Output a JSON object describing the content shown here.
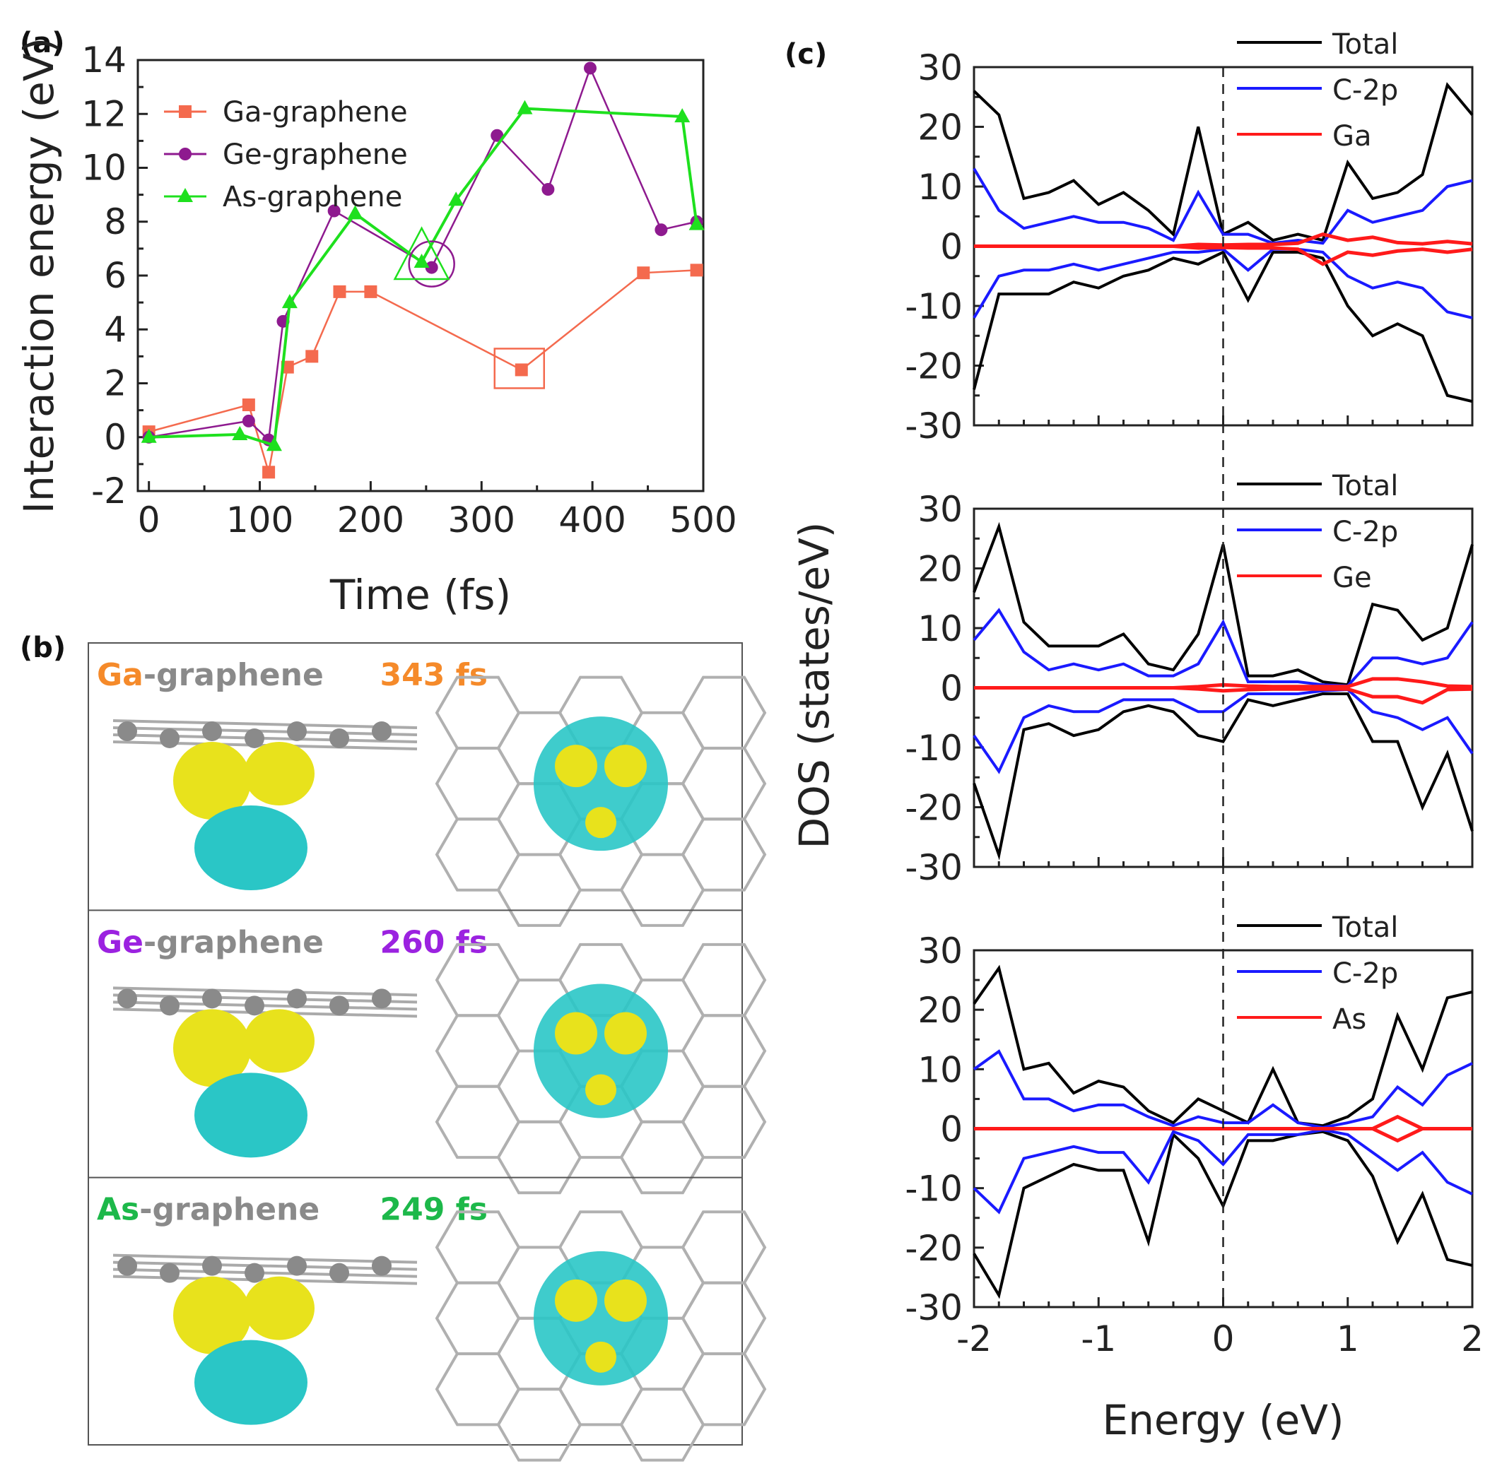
{
  "figure": {
    "panel_a_label": "(a)",
    "panel_b_label": "(b)",
    "panel_c_label": "(c)",
    "colors": {
      "ga": "#f46a4e",
      "ge": "#8e1a8f",
      "as": "#1ee01e",
      "total": "#000000",
      "c2p": "#1a1aff",
      "element": "#ff1a1a",
      "iso_yellow": "#e8e21c",
      "iso_cyan": "#2ac6c6",
      "atom": "#8a8a8a"
    }
  },
  "chart_data": [
    {
      "id": "panel-a",
      "type": "line",
      "title": "",
      "xlabel": "Time (fs)",
      "ylabel": "Interaction energy (eV)",
      "xlim": [
        -10,
        500
      ],
      "ylim": [
        -2,
        14
      ],
      "xticks": [
        0,
        100,
        200,
        300,
        400,
        500
      ],
      "yticks": [
        -2,
        0,
        2,
        4,
        6,
        8,
        10,
        12,
        14
      ],
      "legend": "top-left",
      "series": [
        {
          "name": "Ga-graphene",
          "marker": "square",
          "color": "#f46a4e",
          "x": [
            0,
            90,
            108,
            125,
            147,
            172,
            200,
            336,
            446,
            494
          ],
          "y": [
            0.2,
            1.2,
            -1.3,
            2.6,
            3.0,
            5.4,
            5.4,
            2.5,
            6.1,
            6.2
          ]
        },
        {
          "name": "Ge-graphene",
          "marker": "circle",
          "color": "#8e1a8f",
          "x": [
            0,
            90,
            108,
            121,
            167,
            255,
            314,
            360,
            398,
            462,
            494
          ],
          "y": [
            0.0,
            0.6,
            -0.1,
            4.3,
            8.4,
            6.3,
            11.2,
            9.2,
            13.7,
            7.7,
            8.0
          ]
        },
        {
          "name": "As-graphene",
          "marker": "triangle",
          "color": "#1ee01e",
          "x": [
            0,
            82,
            113,
            127,
            186,
            246,
            277,
            339,
            481,
            494
          ],
          "y": [
            0.0,
            0.1,
            -0.3,
            5.0,
            8.3,
            6.5,
            8.8,
            12.2,
            11.9,
            7.9
          ]
        }
      ],
      "annotations": [
        {
          "shape": "square",
          "series": "Ga-graphene",
          "x": 336,
          "y": 2.5
        },
        {
          "shape": "circle",
          "series": "Ge-graphene",
          "x": 255,
          "y": 6.3
        },
        {
          "shape": "triangle",
          "series": "As-graphene",
          "x": 246,
          "y": 6.5
        }
      ]
    },
    {
      "id": "panel-c",
      "type": "line",
      "title": "",
      "xlabel": "Energy (eV)",
      "ylabel": "DOS (states/eV)",
      "xlim": [
        -2,
        2
      ],
      "ylim": [
        -30,
        30
      ],
      "xticks": [
        -2,
        -1,
        0,
        1,
        2
      ],
      "yticks": [
        -30,
        -20,
        -10,
        0,
        10,
        20,
        30
      ],
      "fermi_line_x": 0,
      "subplots": [
        {
          "element": "Ga",
          "legend": [
            "Total",
            "C-2p",
            "Ga"
          ],
          "x": [
            -2,
            -1.8,
            -1.6,
            -1.4,
            -1.2,
            -1.0,
            -0.8,
            -0.6,
            -0.4,
            -0.2,
            0,
            0.2,
            0.4,
            0.6,
            0.8,
            1.0,
            1.2,
            1.4,
            1.6,
            1.8,
            2.0
          ],
          "total_up": [
            26,
            22,
            8,
            9,
            11,
            7,
            9,
            6,
            2,
            20,
            2,
            4,
            1,
            2,
            1,
            14,
            8,
            9,
            12,
            27,
            22
          ],
          "total_down": [
            -24,
            -8,
            -8,
            -8,
            -6,
            -7,
            -5,
            -4,
            -2,
            -3,
            -1,
            -9,
            -1,
            -1,
            -2,
            -10,
            -15,
            -13,
            -15,
            -25,
            -26
          ],
          "c2p_up": [
            13,
            6,
            3,
            4,
            5,
            4,
            4,
            3,
            1,
            9,
            2,
            2,
            0.5,
            1,
            0.5,
            6,
            4,
            5,
            6,
            10,
            11
          ],
          "c2p_down": [
            -12,
            -5,
            -4,
            -4,
            -3,
            -4,
            -3,
            -2,
            -1,
            -1,
            -0.5,
            -4,
            -0.5,
            -0.5,
            -1,
            -5,
            -7,
            -6,
            -7,
            -11,
            -12
          ],
          "elem_up": [
            0,
            0,
            0,
            0,
            0,
            0,
            0,
            0,
            0,
            0.3,
            0.2,
            0.3,
            0.3,
            0.5,
            2,
            1,
            1.5,
            0.6,
            0.4,
            0.8,
            0.4
          ],
          "elem_down": [
            0,
            0,
            0,
            0,
            0,
            0,
            0,
            0,
            0,
            -0.3,
            -0.2,
            -0.3,
            -0.3,
            -0.5,
            -3,
            -1,
            -1.5,
            -0.8,
            -0.5,
            -1,
            -0.5
          ]
        },
        {
          "element": "Ge",
          "legend": [
            "Total",
            "C-2p",
            "Ge"
          ],
          "x": [
            -2,
            -1.8,
            -1.6,
            -1.4,
            -1.2,
            -1.0,
            -0.8,
            -0.6,
            -0.4,
            -0.2,
            0,
            0.2,
            0.4,
            0.6,
            0.8,
            1.0,
            1.2,
            1.4,
            1.6,
            1.8,
            2.0
          ],
          "total_up": [
            16,
            27,
            11,
            7,
            7,
            7,
            9,
            4,
            3,
            9,
            24,
            2,
            2,
            3,
            1,
            0.5,
            14,
            13,
            8,
            10,
            24
          ],
          "total_down": [
            -16,
            -28,
            -7,
            -6,
            -8,
            -7,
            -4,
            -3,
            -4,
            -8,
            -9,
            -2,
            -3,
            -2,
            -1,
            -1,
            -9,
            -9,
            -20,
            -11,
            -24
          ],
          "c2p_up": [
            8,
            13,
            6,
            3,
            4,
            3,
            4,
            2,
            2,
            4,
            11,
            1,
            1,
            1,
            0.5,
            0.3,
            5,
            5,
            4,
            5,
            11
          ],
          "c2p_down": [
            -8,
            -14,
            -5,
            -3,
            -4,
            -4,
            -2,
            -2,
            -2,
            -4,
            -4,
            -1,
            -1,
            -1,
            -0.5,
            -0.3,
            -4,
            -5,
            -7,
            -5,
            -11
          ],
          "elem_up": [
            0,
            0,
            0,
            0,
            0,
            0,
            0,
            0,
            0,
            0.2,
            0.5,
            0.3,
            0.2,
            0.2,
            0.2,
            0.2,
            1.5,
            1.5,
            1,
            0.3,
            0.2
          ],
          "elem_down": [
            0,
            0,
            0,
            0,
            0,
            0,
            0,
            0,
            0,
            -0.2,
            -0.5,
            -0.3,
            -0.2,
            -0.2,
            -0.2,
            -0.2,
            -1.5,
            -1.5,
            -2.5,
            -0.3,
            -0.2
          ]
        },
        {
          "element": "As",
          "legend": [
            "Total",
            "C-2p",
            "As"
          ],
          "x": [
            -2,
            -1.8,
            -1.6,
            -1.4,
            -1.2,
            -1.0,
            -0.8,
            -0.6,
            -0.4,
            -0.2,
            0,
            0.2,
            0.4,
            0.6,
            0.8,
            1.0,
            1.2,
            1.4,
            1.6,
            1.8,
            2.0
          ],
          "total_up": [
            21,
            27,
            10,
            11,
            6,
            8,
            7,
            3,
            1,
            5,
            3,
            1,
            10,
            1,
            0.5,
            2,
            5,
            19,
            10,
            22,
            23
          ],
          "total_down": [
            -21,
            -28,
            -10,
            -8,
            -6,
            -7,
            -7,
            -19,
            -1,
            -5,
            -13,
            -2,
            -2,
            -1,
            -0.5,
            -2,
            -8,
            -19,
            -11,
            -22,
            -23
          ],
          "c2p_up": [
            10,
            13,
            5,
            5,
            3,
            4,
            4,
            2,
            0.5,
            2,
            1,
            1,
            4,
            1,
            0.2,
            1,
            2,
            7,
            4,
            9,
            11
          ],
          "c2p_down": [
            -10,
            -14,
            -5,
            -4,
            -3,
            -4,
            -4,
            -9,
            -0.5,
            -2,
            -6,
            -1,
            -1,
            -1,
            -0.2,
            -1,
            -4,
            -7,
            -4,
            -9,
            -11
          ],
          "elem_up": [
            0,
            0,
            0,
            0,
            0,
            0,
            0,
            0,
            0,
            0,
            0,
            0,
            0,
            0,
            0,
            0,
            0,
            2,
            0,
            0,
            0
          ],
          "elem_down": [
            0,
            0,
            0,
            0,
            0,
            0,
            0,
            0,
            0,
            0,
            0,
            0,
            0,
            0,
            0,
            0,
            0,
            -2,
            0,
            0,
            0
          ]
        }
      ]
    }
  ],
  "panel_b": {
    "rows": [
      {
        "element": "Ga",
        "rest": "-graphene",
        "time": "343 fs",
        "color": "#f58a2a"
      },
      {
        "element": "Ge",
        "rest": "-graphene",
        "time": "260 fs",
        "color": "#9b22e0"
      },
      {
        "element": "As",
        "rest": "-graphene",
        "time": "249 fs",
        "color": "#1db84a"
      }
    ],
    "rest_color": "#8a8a8a"
  }
}
